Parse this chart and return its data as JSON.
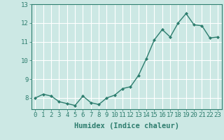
{
  "x": [
    0,
    1,
    2,
    3,
    4,
    5,
    6,
    7,
    8,
    9,
    10,
    11,
    12,
    13,
    14,
    15,
    16,
    17,
    18,
    19,
    20,
    21,
    22,
    23
  ],
  "y": [
    8.0,
    8.2,
    8.1,
    7.8,
    7.7,
    7.6,
    8.1,
    7.75,
    7.65,
    8.0,
    8.15,
    8.5,
    8.6,
    9.2,
    10.1,
    11.1,
    11.65,
    11.25,
    12.0,
    12.5,
    11.9,
    11.85,
    11.2,
    11.25
  ],
  "line_color": "#2d7d6e",
  "marker": "D",
  "marker_size": 2.0,
  "bg_color": "#cce8e4",
  "grid_color": "#ffffff",
  "xlabel": "Humidex (Indice chaleur)",
  "ylim": [
    7.4,
    13.0
  ],
  "xlim": [
    -0.5,
    23.5
  ],
  "yticks": [
    8,
    9,
    10,
    11,
    12,
    13
  ],
  "xticks": [
    0,
    1,
    2,
    3,
    4,
    5,
    6,
    7,
    8,
    9,
    10,
    11,
    12,
    13,
    14,
    15,
    16,
    17,
    18,
    19,
    20,
    21,
    22,
    23
  ],
  "tick_color": "#2d7d6e",
  "label_color": "#2d7d6e",
  "font_size_ticks": 6.5,
  "font_size_label": 7.5,
  "linewidth": 1.0
}
